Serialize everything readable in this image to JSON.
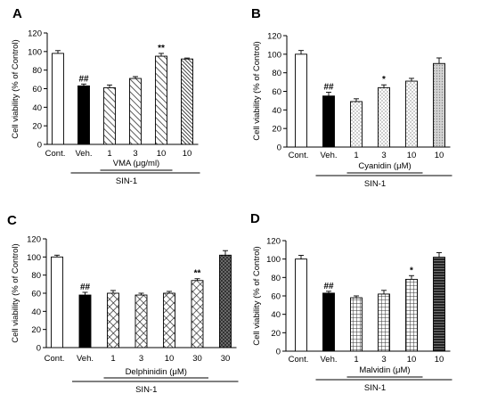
{
  "figure": {
    "panels": [
      "A",
      "B",
      "C",
      "D"
    ]
  },
  "chart_data": [
    {
      "panel": "A",
      "type": "bar",
      "ylabel": "Cell  viability (% of Control)",
      "ylim": [
        0,
        120
      ],
      "yticks": [
        0,
        20,
        40,
        60,
        80,
        100,
        120
      ],
      "categories": [
        "Cont.",
        "Veh.",
        "1",
        "3",
        "10",
        "10"
      ],
      "values": [
        98,
        63,
        61,
        71,
        95,
        92
      ],
      "errors": [
        3,
        2,
        3,
        2,
        3,
        1
      ],
      "annotations": [
        "",
        "##",
        "",
        "",
        "**",
        ""
      ],
      "fills": [
        "white",
        "black",
        "diag",
        "diag",
        "diag",
        "dense-diag"
      ],
      "treatment": "VMA (μg/ml)",
      "treatment_span": [
        2,
        4
      ],
      "group": "SIN-1",
      "group_span": [
        1,
        5
      ]
    },
    {
      "panel": "B",
      "type": "bar",
      "ylabel": "Cell  viability (% of Control)",
      "ylim": [
        0,
        120
      ],
      "yticks": [
        0,
        20,
        40,
        60,
        80,
        100,
        120
      ],
      "categories": [
        "Cont.",
        "Veh.",
        "1",
        "3",
        "10",
        "10"
      ],
      "values": [
        100,
        55,
        49,
        64,
        71,
        90
      ],
      "errors": [
        4,
        4,
        3,
        3,
        3,
        6
      ],
      "annotations": [
        "",
        "##",
        "",
        "*",
        "",
        ""
      ],
      "annotation_offsets": [
        0,
        0,
        0,
        0,
        0,
        0
      ],
      "fills": [
        "white",
        "black",
        "dots",
        "dots",
        "dots",
        "grey-dots"
      ],
      "treatment": "Cyanidin (μM)",
      "treatment_span": [
        2,
        4
      ],
      "group": "SIN-1",
      "group_span": [
        1,
        5
      ]
    },
    {
      "panel": "C",
      "type": "bar",
      "ylabel": "Cell  viability (% of Control)",
      "ylim": [
        0,
        120
      ],
      "yticks": [
        0,
        20,
        40,
        60,
        80,
        100,
        120
      ],
      "categories": [
        "Cont.",
        "Veh.",
        "1",
        "3",
        "10",
        "30",
        "30"
      ],
      "values": [
        100,
        58,
        60,
        58,
        60,
        74,
        102
      ],
      "errors": [
        2,
        3,
        3,
        2,
        2,
        2,
        5
      ],
      "annotations": [
        "",
        "##",
        "",
        "",
        "",
        "**",
        ""
      ],
      "fills": [
        "white",
        "black",
        "check",
        "check",
        "check",
        "check",
        "dark-check"
      ],
      "treatment": "Delphinidin (μM)",
      "treatment_span": [
        2,
        5
      ],
      "group": "SIN-1",
      "group_span": [
        1,
        6
      ]
    },
    {
      "panel": "D",
      "type": "bar",
      "ylabel": "Cell  viability (% of Control)",
      "ylim": [
        0,
        120
      ],
      "yticks": [
        0,
        20,
        40,
        60,
        80,
        100,
        120
      ],
      "categories": [
        "Cont.",
        "Veh.",
        "1",
        "3",
        "10",
        "10"
      ],
      "values": [
        100,
        63,
        58,
        62,
        78,
        102
      ],
      "errors": [
        4,
        2,
        2,
        4,
        4,
        5
      ],
      "annotations": [
        "",
        "##",
        "",
        "",
        "*",
        ""
      ],
      "fills": [
        "white",
        "black",
        "grid",
        "grid",
        "grid",
        "dark-grid"
      ],
      "treatment": "Malvidin (μM)",
      "treatment_span": [
        2,
        4
      ],
      "group": "SIN-1",
      "group_span": [
        1,
        5
      ]
    }
  ]
}
